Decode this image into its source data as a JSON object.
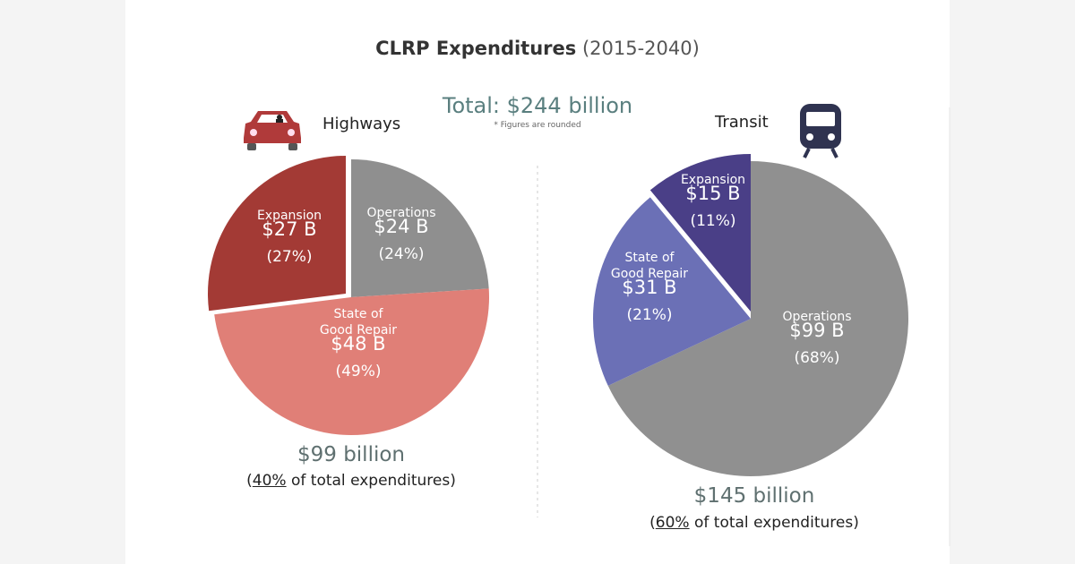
{
  "title": {
    "main": "CLRP Expenditures",
    "years": "(2015-2040)"
  },
  "total": "Total: $244 billion",
  "note": "* Figures are rounded",
  "chart_data": [
    {
      "type": "pie",
      "title": "Highways",
      "icon": "car-icon",
      "total_label": "$99 billion",
      "share_pct": "40%",
      "share_suffix": " of total expenditures)",
      "slices": [
        {
          "name": "Operations",
          "value_label": "$24 B",
          "pct_label": "(24%)",
          "value": 24,
          "percent": 24,
          "color": "#8f8f8f"
        },
        {
          "name": "State of Good Repair",
          "line1": "State of",
          "line2": "Good Repair",
          "value_label": "$48 B",
          "pct_label": "(49%)",
          "value": 48,
          "percent": 49,
          "color": "#e07f77"
        },
        {
          "name": "Expansion",
          "value_label": "$27 B",
          "pct_label": "(27%)",
          "value": 27,
          "percent": 27,
          "color": "#a33a35",
          "exploded": true
        }
      ]
    },
    {
      "type": "pie",
      "title": "Transit",
      "icon": "train-icon",
      "total_label": "$145 billion",
      "share_pct": "60%",
      "share_suffix": " of total expenditures)",
      "slices": [
        {
          "name": "Operations",
          "value_label": "$99 B",
          "pct_label": "(68%)",
          "value": 99,
          "percent": 68,
          "color": "#909090"
        },
        {
          "name": "State of Good Repair",
          "line1": "State of",
          "line2": "Good Repair",
          "value_label": "$31 B",
          "pct_label": "(21%)",
          "value": 31,
          "percent": 21,
          "color": "#6b70b6"
        },
        {
          "name": "Expansion",
          "value_label": "$15 B",
          "pct_label": "(11%)",
          "value": 15,
          "percent": 11,
          "color": "#4a3f87",
          "exploded": true
        }
      ]
    }
  ]
}
